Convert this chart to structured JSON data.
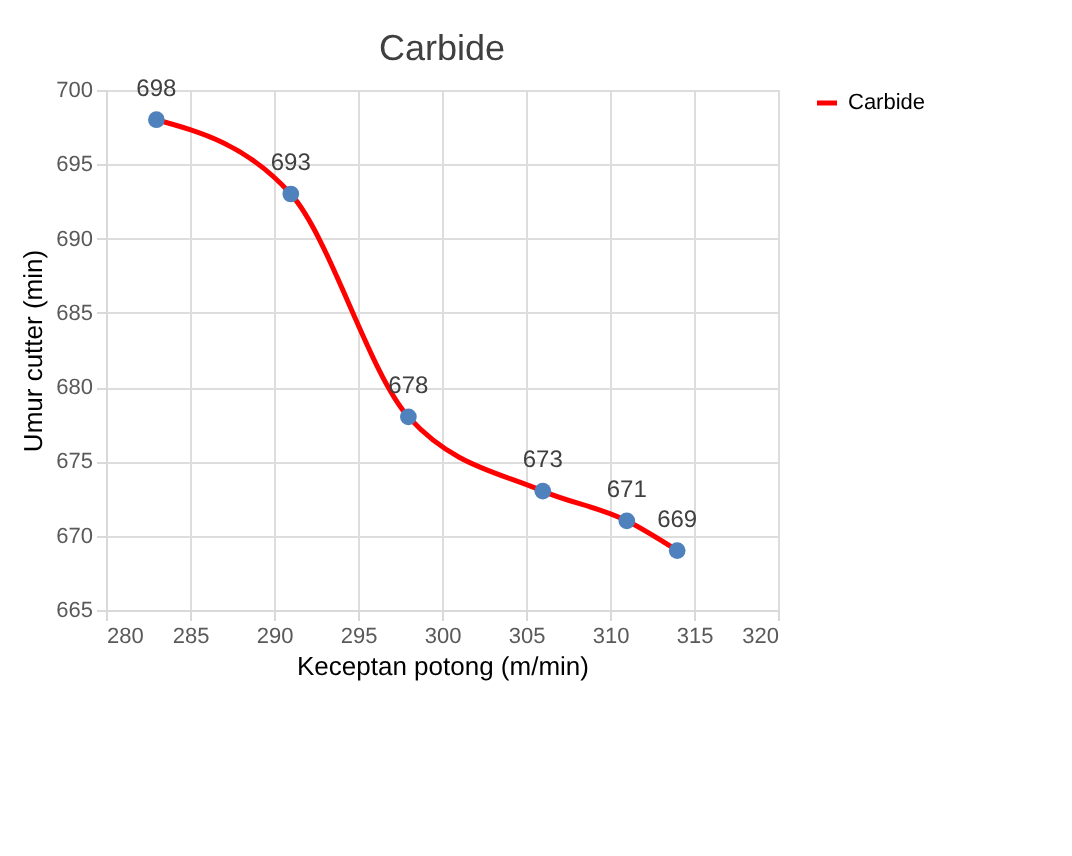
{
  "chart_data": {
    "type": "line",
    "title": "Carbide",
    "xlabel": "Keceptan potong (m/min)",
    "ylabel": "Umur cutter (min)",
    "x": [
      283,
      291,
      298,
      306,
      311,
      314
    ],
    "series": [
      {
        "name": "Carbide",
        "color": "#ff0000",
        "colors": [
          "#4f81bd",
          "#4f81bd",
          "#4f81bd",
          "#4f81bd",
          "#4f81bd",
          "#4f81bd"
        ],
        "values": [
          698,
          693,
          678,
          673,
          671,
          669
        ]
      }
    ],
    "xlim": [
      280,
      320
    ],
    "xticks": [
      280,
      285,
      290,
      295,
      300,
      305,
      310,
      315,
      320
    ],
    "ylim": [
      665,
      700
    ],
    "yticks": [
      665,
      670,
      675,
      680,
      685,
      690,
      695,
      700
    ],
    "grid": true,
    "legend": "right",
    "marker": "circle",
    "line_style": "solid",
    "data_labels": true
  }
}
